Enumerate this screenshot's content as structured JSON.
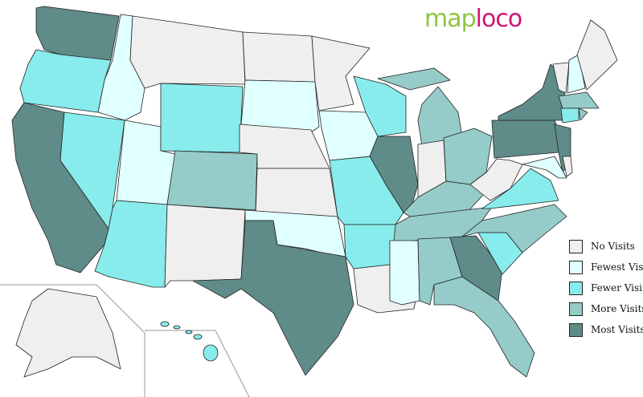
{
  "logo": {
    "part1": "map",
    "part2": "loco"
  },
  "legend": [
    {
      "key": "none",
      "label": "No Visits",
      "color": "#efefef"
    },
    {
      "key": "fewest",
      "label": "Fewest Visits",
      "color": "#e0ffff"
    },
    {
      "key": "fewer",
      "label": "Fewer Visits",
      "color": "#88ecec"
    },
    {
      "key": "more",
      "label": "More Visits",
      "color": "#95cbc8"
    },
    {
      "key": "most",
      "label": "Most Visits",
      "color": "#5f8b89"
    }
  ],
  "states": {
    "WA": "most",
    "OR": "fewer",
    "CA": "most",
    "ID": "fewest",
    "NV": "fewer",
    "UT": "fewest",
    "AZ": "fewer",
    "MT": "none",
    "WY": "fewer",
    "CO": "more",
    "NM": "none",
    "ND": "none",
    "SD": "fewest",
    "NE": "none",
    "KS": "none",
    "OK": "fewest",
    "TX": "most",
    "MN": "none",
    "IA": "fewest",
    "MO": "fewer",
    "AR": "fewer",
    "LA": "none",
    "WI": "fewer",
    "IL": "most",
    "MI": "more",
    "IN": "none",
    "OH": "more",
    "KY": "more",
    "TN": "more",
    "MS": "fewest",
    "AL": "more",
    "GA": "most",
    "FL": "more",
    "SC": "fewer",
    "NC": "more",
    "VA": "fewer",
    "WV": "none",
    "MD": "fewest",
    "DE": "none",
    "PA": "most",
    "NY": "most",
    "NJ": "most",
    "CT": "fewer",
    "RI": "more",
    "MA": "more",
    "VT": "none",
    "NH": "fewest",
    "ME": "none",
    "AK": "none",
    "HI": "fewer"
  }
}
